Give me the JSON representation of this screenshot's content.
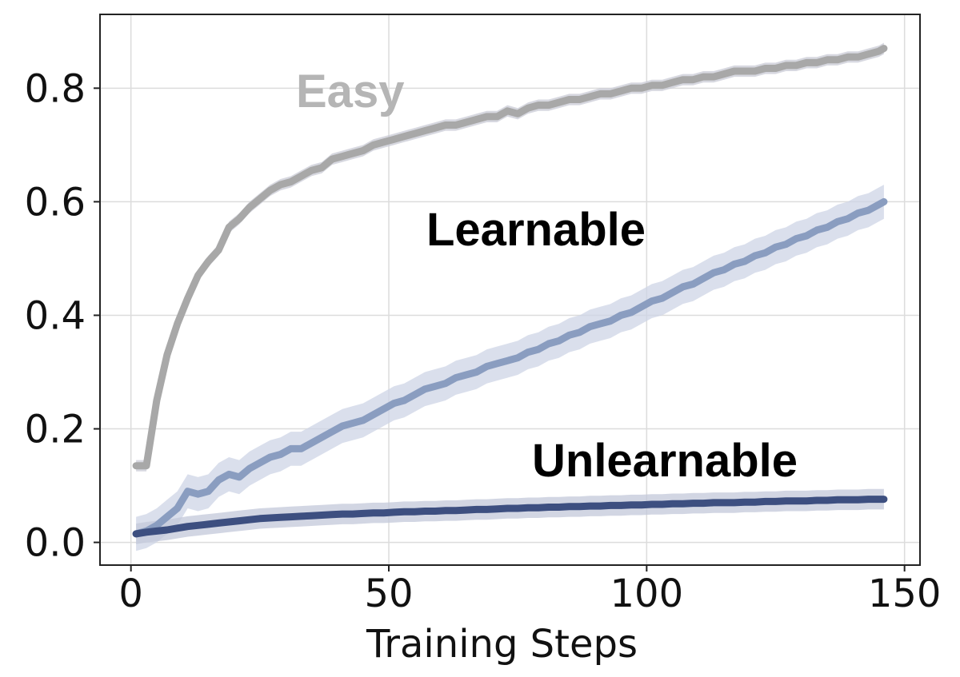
{
  "chart_data": {
    "type": "line",
    "title": "",
    "xlabel": "Training Steps",
    "ylabel": "",
    "xlim": [
      -6,
      153
    ],
    "ylim": [
      -0.04,
      0.93
    ],
    "grid": true,
    "legend": "none",
    "x_ticks": [
      0,
      50,
      100,
      150
    ],
    "x_tick_labels": [
      "0",
      "50",
      "100",
      "150"
    ],
    "y_ticks": [
      0.0,
      0.2,
      0.4,
      0.6,
      0.8
    ],
    "y_tick_labels": [
      "0.0",
      "0.2",
      "0.4",
      "0.6",
      "0.8"
    ],
    "series": [
      {
        "label": "Easy",
        "color": "#a8a8a8",
        "band_color": "#c9cbd6",
        "x": [
          1,
          3,
          5,
          7,
          9,
          11,
          13,
          15,
          17,
          19,
          21,
          23,
          25,
          27,
          29,
          31,
          33,
          35,
          37,
          39,
          41,
          43,
          45,
          47,
          49,
          51,
          53,
          55,
          57,
          59,
          61,
          63,
          65,
          67,
          69,
          71,
          73,
          75,
          77,
          79,
          81,
          83,
          85,
          87,
          89,
          91,
          93,
          95,
          97,
          99,
          101,
          103,
          105,
          107,
          109,
          111,
          113,
          115,
          117,
          119,
          121,
          123,
          125,
          127,
          129,
          131,
          133,
          135,
          137,
          139,
          141,
          143,
          145,
          146
        ],
        "y": [
          0.135,
          0.135,
          0.25,
          0.33,
          0.385,
          0.43,
          0.47,
          0.495,
          0.515,
          0.555,
          0.57,
          0.59,
          0.605,
          0.62,
          0.63,
          0.635,
          0.645,
          0.655,
          0.66,
          0.675,
          0.68,
          0.685,
          0.69,
          0.7,
          0.705,
          0.71,
          0.715,
          0.72,
          0.725,
          0.73,
          0.735,
          0.735,
          0.74,
          0.745,
          0.75,
          0.75,
          0.76,
          0.755,
          0.765,
          0.77,
          0.77,
          0.775,
          0.78,
          0.78,
          0.785,
          0.79,
          0.79,
          0.795,
          0.8,
          0.8,
          0.805,
          0.805,
          0.81,
          0.815,
          0.815,
          0.82,
          0.82,
          0.825,
          0.83,
          0.83,
          0.83,
          0.835,
          0.835,
          0.84,
          0.84,
          0.845,
          0.845,
          0.85,
          0.85,
          0.855,
          0.855,
          0.86,
          0.865,
          0.87
        ],
        "band": 0.01
      },
      {
        "label": "Learnable",
        "color": "#8a9dc0",
        "band_color": "#cdd4e6",
        "x": [
          1,
          3,
          5,
          7,
          9,
          11,
          13,
          15,
          17,
          19,
          21,
          23,
          25,
          27,
          29,
          31,
          33,
          35,
          37,
          39,
          41,
          43,
          45,
          47,
          49,
          51,
          53,
          55,
          57,
          59,
          61,
          63,
          65,
          67,
          69,
          71,
          73,
          75,
          77,
          79,
          81,
          83,
          85,
          87,
          89,
          91,
          93,
          95,
          97,
          99,
          101,
          103,
          105,
          107,
          109,
          111,
          113,
          115,
          117,
          119,
          121,
          123,
          125,
          127,
          129,
          131,
          133,
          135,
          137,
          139,
          141,
          143,
          145,
          146
        ],
        "y": [
          0.015,
          0.02,
          0.03,
          0.045,
          0.06,
          0.09,
          0.085,
          0.09,
          0.11,
          0.12,
          0.115,
          0.13,
          0.14,
          0.15,
          0.155,
          0.165,
          0.165,
          0.175,
          0.185,
          0.195,
          0.205,
          0.21,
          0.215,
          0.225,
          0.235,
          0.245,
          0.25,
          0.26,
          0.27,
          0.275,
          0.28,
          0.29,
          0.295,
          0.3,
          0.31,
          0.315,
          0.32,
          0.325,
          0.335,
          0.34,
          0.35,
          0.355,
          0.365,
          0.37,
          0.38,
          0.385,
          0.39,
          0.4,
          0.405,
          0.415,
          0.425,
          0.43,
          0.44,
          0.45,
          0.455,
          0.465,
          0.475,
          0.48,
          0.49,
          0.495,
          0.505,
          0.51,
          0.52,
          0.525,
          0.535,
          0.54,
          0.55,
          0.555,
          0.565,
          0.57,
          0.58,
          0.585,
          0.595,
          0.6
        ],
        "band": 0.03
      },
      {
        "label": "Unlearnable",
        "color": "#3d4f80",
        "band_color": "#c3c8da",
        "x": [
          1,
          3,
          5,
          7,
          9,
          11,
          13,
          15,
          17,
          19,
          21,
          23,
          25,
          27,
          29,
          31,
          33,
          35,
          37,
          39,
          41,
          43,
          45,
          47,
          49,
          51,
          53,
          55,
          57,
          59,
          61,
          63,
          65,
          67,
          69,
          71,
          73,
          75,
          77,
          79,
          81,
          83,
          85,
          87,
          89,
          91,
          93,
          95,
          97,
          99,
          101,
          103,
          105,
          107,
          109,
          111,
          113,
          115,
          117,
          119,
          121,
          123,
          125,
          127,
          129,
          131,
          133,
          135,
          137,
          139,
          141,
          143,
          145,
          146
        ],
        "y": [
          0.015,
          0.018,
          0.02,
          0.022,
          0.025,
          0.028,
          0.03,
          0.032,
          0.034,
          0.036,
          0.038,
          0.04,
          0.042,
          0.043,
          0.044,
          0.045,
          0.046,
          0.047,
          0.048,
          0.049,
          0.05,
          0.05,
          0.051,
          0.052,
          0.052,
          0.053,
          0.054,
          0.054,
          0.055,
          0.055,
          0.056,
          0.056,
          0.057,
          0.058,
          0.058,
          0.059,
          0.06,
          0.06,
          0.061,
          0.061,
          0.062,
          0.062,
          0.063,
          0.063,
          0.064,
          0.064,
          0.065,
          0.065,
          0.066,
          0.066,
          0.067,
          0.067,
          0.068,
          0.068,
          0.069,
          0.069,
          0.07,
          0.07,
          0.07,
          0.071,
          0.071,
          0.072,
          0.072,
          0.073,
          0.073,
          0.073,
          0.074,
          0.074,
          0.075,
          0.075,
          0.075,
          0.076,
          0.076,
          0.076
        ],
        "band": 0.018
      }
    ],
    "annotations": [
      {
        "text": "Easy",
        "series": "Easy",
        "color": "#b5b5b5"
      },
      {
        "text": "Learnable",
        "series": "Learnable",
        "color": "#000000"
      },
      {
        "text": "Unlearnable",
        "series": "Unlearnable",
        "color": "#000000"
      }
    ]
  }
}
